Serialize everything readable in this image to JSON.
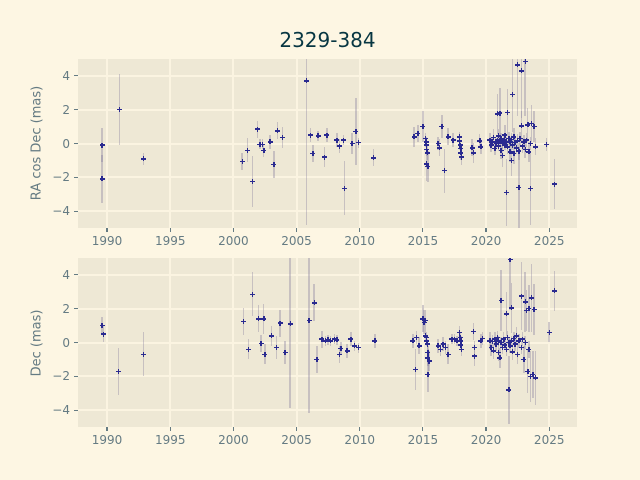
{
  "title": "2329-384",
  "colors": {
    "figure_bg": "#FDF6E3",
    "plot_bg": "#EEE8D5",
    "grid": "#FBF4E1",
    "tick_label": "#657b83",
    "title_color": "#073642",
    "marker": "#2a2a90",
    "error_bar": "rgba(125,118,155,0.35)"
  },
  "chart_data": [
    {
      "type": "scatter",
      "title": "2329-384",
      "ylabel": "RA cos Dec (mas)",
      "xlabel": "",
      "grid": true,
      "legend": false,
      "xlim": [
        1987.7,
        2027.2
      ],
      "ylim": [
        -5,
        5
      ],
      "xticks": [
        1990,
        1995,
        2000,
        2005,
        2010,
        2015,
        2020,
        2025
      ],
      "xtick_labels": [
        "1990",
        "1995",
        "2000",
        "2005",
        "2010",
        "2015",
        "2020",
        "2025"
      ],
      "yticks": [
        -4,
        -2,
        0,
        2,
        4
      ],
      "ytick_labels": [
        "−4",
        "−2",
        "0",
        "2",
        "4"
      ],
      "points_format": [
        "year",
        "value_mas",
        "error_mas"
      ],
      "points": [
        [
          1989.6,
          -0.1,
          1.0
        ],
        [
          1989.6,
          -2.1,
          1.4
        ],
        [
          1991.0,
          2.0,
          2.1
        ],
        [
          1992.9,
          -0.9,
          0.35
        ],
        [
          2000.7,
          -1.05,
          0.5
        ],
        [
          2001.1,
          -0.4,
          0.7
        ],
        [
          2001.5,
          -2.25,
          1.5
        ],
        [
          2001.9,
          0.85,
          0.5
        ],
        [
          2002.1,
          -0.05,
          0.3
        ],
        [
          2002.3,
          -0.05,
          0.3
        ],
        [
          2002.4,
          -0.4,
          0.4
        ],
        [
          2002.9,
          0.1,
          0.4
        ],
        [
          2003.2,
          -1.25,
          0.8
        ],
        [
          2003.5,
          0.75,
          0.5
        ],
        [
          2003.9,
          0.35,
          0.6
        ],
        [
          2005.8,
          3.7,
          8.5
        ],
        [
          2006.1,
          0.5,
          0.4
        ],
        [
          2006.3,
          -0.6,
          0.5
        ],
        [
          2006.7,
          0.45,
          0.3
        ],
        [
          2007.2,
          -0.8,
          0.6
        ],
        [
          2007.4,
          0.5,
          0.4
        ],
        [
          2008.2,
          0.2,
          0.4
        ],
        [
          2008.4,
          -0.15,
          0.4
        ],
        [
          2008.7,
          0.2,
          0.3
        ],
        [
          2008.8,
          -2.65,
          1.6
        ],
        [
          2009.4,
          0.0,
          0.6
        ],
        [
          2009.7,
          0.7,
          2.0
        ],
        [
          2009.9,
          0.05,
          0.3
        ],
        [
          2011.1,
          -0.85,
          0.5
        ],
        [
          2014.3,
          0.4,
          0.6
        ],
        [
          2014.6,
          0.6,
          0.5
        ],
        [
          2015.0,
          1.0,
          0.9
        ],
        [
          2015.2,
          0.3,
          0.3
        ],
        [
          2015.25,
          0.1,
          0.3
        ],
        [
          2015.3,
          -0.1,
          0.3
        ],
        [
          2015.3,
          -0.35,
          0.4
        ],
        [
          2015.35,
          -0.55,
          0.45
        ],
        [
          2015.3,
          -1.2,
          1.0
        ],
        [
          2015.4,
          -1.35,
          0.9
        ],
        [
          2016.2,
          0.0,
          0.4
        ],
        [
          2016.3,
          -0.25,
          0.5
        ],
        [
          2016.5,
          1.0,
          0.7
        ],
        [
          2016.7,
          -1.6,
          1.3
        ],
        [
          2017.0,
          0.4,
          0.5
        ],
        [
          2017.4,
          0.2,
          0.4
        ],
        [
          2017.9,
          0.4,
          0.3
        ],
        [
          2017.9,
          0.15,
          0.3
        ],
        [
          2017.95,
          -0.1,
          0.3
        ],
        [
          2018.0,
          -0.3,
          0.3
        ],
        [
          2018.0,
          -0.55,
          0.4
        ],
        [
          2018.05,
          -0.8,
          0.5
        ],
        [
          2018.9,
          -0.25,
          0.5
        ],
        [
          2019.0,
          -0.55,
          0.6
        ],
        [
          2019.5,
          0.15,
          0.4
        ],
        [
          2019.6,
          -0.2,
          0.4
        ],
        [
          2020.3,
          0.2,
          0.4
        ],
        [
          2020.4,
          -0.1,
          0.4
        ],
        [
          2020.5,
          0.1,
          0.3
        ],
        [
          2020.6,
          0.35,
          0.5
        ],
        [
          2020.7,
          -0.3,
          0.4
        ],
        [
          2020.8,
          0.0,
          0.3
        ],
        [
          2020.9,
          1.75,
          1.2
        ],
        [
          2020.9,
          0.2,
          0.3
        ],
        [
          2021.0,
          -0.15,
          0.3
        ],
        [
          2021.0,
          0.45,
          0.4
        ],
        [
          2021.1,
          1.8,
          1.5
        ],
        [
          2021.1,
          0.1,
          0.3
        ],
        [
          2021.2,
          -0.4,
          0.5
        ],
        [
          2021.2,
          0.3,
          0.3
        ],
        [
          2021.3,
          0.0,
          0.3
        ],
        [
          2021.3,
          -0.7,
          0.7
        ],
        [
          2021.4,
          0.2,
          0.3
        ],
        [
          2021.5,
          -0.1,
          0.3
        ],
        [
          2021.5,
          0.5,
          0.6
        ],
        [
          2021.6,
          -2.9,
          2.0
        ],
        [
          2021.6,
          0.1,
          0.3
        ],
        [
          2021.7,
          1.85,
          1.4
        ],
        [
          2021.7,
          -0.2,
          0.4
        ],
        [
          2021.8,
          0.3,
          0.4
        ],
        [
          2021.9,
          -0.5,
          0.6
        ],
        [
          2021.9,
          0.1,
          0.3
        ],
        [
          2022.0,
          -1.0,
          0.9
        ],
        [
          2022.0,
          0.25,
          0.4
        ],
        [
          2022.1,
          2.9,
          2.2
        ],
        [
          2022.1,
          -0.1,
          0.3
        ],
        [
          2022.2,
          0.4,
          0.5
        ],
        [
          2022.2,
          -0.6,
          0.6
        ],
        [
          2022.3,
          0.05,
          0.3
        ],
        [
          2022.4,
          -0.25,
          0.4
        ],
        [
          2022.5,
          4.65,
          3.0
        ],
        [
          2022.5,
          0.15,
          0.4
        ],
        [
          2022.6,
          -2.6,
          2.4
        ],
        [
          2022.6,
          -0.45,
          0.5
        ],
        [
          2022.7,
          0.3,
          0.4
        ],
        [
          2022.8,
          4.3,
          2.8
        ],
        [
          2022.8,
          1.05,
          0.9
        ],
        [
          2022.9,
          -0.15,
          0.4
        ],
        [
          2023.0,
          0.1,
          0.4
        ],
        [
          2023.1,
          4.85,
          3.2
        ],
        [
          2023.1,
          -0.35,
          0.5
        ],
        [
          2023.2,
          0.2,
          0.4
        ],
        [
          2023.3,
          1.1,
          1.0
        ],
        [
          2023.4,
          -0.5,
          0.6
        ],
        [
          2023.5,
          -2.65,
          2.2
        ],
        [
          2023.5,
          0.0,
          0.4
        ],
        [
          2023.6,
          1.2,
          1.1
        ],
        [
          2023.8,
          1.0,
          0.9
        ],
        [
          2023.9,
          -0.2,
          0.5
        ],
        [
          2024.8,
          -0.05,
          0.4
        ],
        [
          2025.4,
          -2.4,
          1.5
        ]
      ]
    },
    {
      "type": "scatter",
      "title": "",
      "ylabel": "Dec (mas)",
      "xlabel": "",
      "grid": true,
      "legend": false,
      "xlim": [
        1987.7,
        2027.2
      ],
      "ylim": [
        -5,
        5
      ],
      "xticks": [
        1990,
        1995,
        2000,
        2005,
        2010,
        2015,
        2020,
        2025
      ],
      "xtick_labels": [
        "1990",
        "1995",
        "2000",
        "2005",
        "2010",
        "2015",
        "2020",
        "2025"
      ],
      "yticks": [
        -4,
        -2,
        0,
        2,
        4
      ],
      "ytick_labels": [
        "−4",
        "−2",
        "0",
        "2",
        "4"
      ],
      "points_format": [
        "year",
        "value_mas",
        "error_mas"
      ],
      "points": [
        [
          1989.6,
          1.0,
          0.5
        ],
        [
          1989.7,
          0.5,
          0.5
        ],
        [
          1990.9,
          -1.7,
          1.4
        ],
        [
          1992.9,
          -0.7,
          1.3
        ],
        [
          2000.8,
          1.25,
          0.8
        ],
        [
          2001.2,
          -0.4,
          0.6
        ],
        [
          2001.5,
          2.85,
          1.3
        ],
        [
          2002.0,
          1.4,
          0.8
        ],
        [
          2002.2,
          -0.05,
          0.5
        ],
        [
          2002.4,
          1.4,
          0.9
        ],
        [
          2002.5,
          -0.7,
          0.6
        ],
        [
          2003.0,
          0.4,
          0.6
        ],
        [
          2003.4,
          -0.3,
          0.7
        ],
        [
          2003.7,
          1.15,
          0.8
        ],
        [
          2004.1,
          -0.6,
          0.7
        ],
        [
          2004.5,
          1.1,
          5.0
        ],
        [
          2006.0,
          1.3,
          5.5
        ],
        [
          2006.4,
          2.35,
          1.1
        ],
        [
          2006.6,
          -1.0,
          0.8
        ],
        [
          2007.0,
          0.2,
          0.5
        ],
        [
          2007.3,
          0.1,
          0.3
        ],
        [
          2007.5,
          0.15,
          0.3
        ],
        [
          2007.7,
          0.1,
          0.3
        ],
        [
          2008.0,
          0.2,
          0.3
        ],
        [
          2008.2,
          0.15,
          0.3
        ],
        [
          2008.4,
          -0.7,
          0.5
        ],
        [
          2008.5,
          -0.35,
          0.4
        ],
        [
          2009.0,
          -0.5,
          0.4
        ],
        [
          2009.3,
          0.2,
          0.4
        ],
        [
          2009.6,
          -0.2,
          0.3
        ],
        [
          2009.9,
          -0.3,
          0.3
        ],
        [
          2011.2,
          0.1,
          0.4
        ],
        [
          2014.2,
          0.1,
          0.4
        ],
        [
          2014.4,
          -1.6,
          1.2
        ],
        [
          2014.5,
          0.3,
          0.4
        ],
        [
          2014.7,
          -0.2,
          0.5
        ],
        [
          2015.0,
          1.4,
          0.8
        ],
        [
          2015.1,
          1.2,
          0.7
        ],
        [
          2015.2,
          1.3,
          0.6
        ],
        [
          2015.2,
          0.4,
          0.3
        ],
        [
          2015.3,
          0.3,
          0.3
        ],
        [
          2015.3,
          0.1,
          0.3
        ],
        [
          2015.35,
          -0.1,
          0.3
        ],
        [
          2015.4,
          -0.6,
          0.4
        ],
        [
          2015.4,
          -0.9,
          0.5
        ],
        [
          2015.5,
          -1.1,
          0.6
        ],
        [
          2015.4,
          -1.9,
          1.0
        ],
        [
          2016.2,
          -0.2,
          0.4
        ],
        [
          2016.4,
          -0.4,
          0.4
        ],
        [
          2016.6,
          -0.1,
          0.4
        ],
        [
          2016.8,
          -0.3,
          0.4
        ],
        [
          2017.0,
          -0.7,
          0.6
        ],
        [
          2017.3,
          0.2,
          0.3
        ],
        [
          2017.5,
          0.2,
          0.3
        ],
        [
          2017.7,
          0.1,
          0.3
        ],
        [
          2017.9,
          0.6,
          0.4
        ],
        [
          2017.95,
          0.3,
          0.3
        ],
        [
          2018.0,
          0.1,
          0.3
        ],
        [
          2018.0,
          -0.15,
          0.3
        ],
        [
          2018.05,
          -0.4,
          0.4
        ],
        [
          2019.0,
          0.65,
          0.5
        ],
        [
          2019.1,
          -0.3,
          0.4
        ],
        [
          2019.1,
          -0.8,
          0.6
        ],
        [
          2019.6,
          0.1,
          0.4
        ],
        [
          2019.7,
          0.25,
          0.4
        ],
        [
          2020.3,
          0.1,
          0.5
        ],
        [
          2020.4,
          -0.3,
          0.5
        ],
        [
          2020.5,
          0.05,
          0.4
        ],
        [
          2020.6,
          -0.5,
          0.5
        ],
        [
          2020.7,
          0.2,
          0.4
        ],
        [
          2020.8,
          -0.1,
          0.4
        ],
        [
          2020.9,
          0.3,
          0.4
        ],
        [
          2021.0,
          -0.6,
          0.5
        ],
        [
          2021.0,
          0.1,
          0.3
        ],
        [
          2021.1,
          -0.9,
          0.6
        ],
        [
          2021.2,
          2.5,
          1.8
        ],
        [
          2021.2,
          0.0,
          0.3
        ],
        [
          2021.3,
          -0.3,
          0.4
        ],
        [
          2021.4,
          0.2,
          0.4
        ],
        [
          2021.5,
          -0.15,
          0.3
        ],
        [
          2021.6,
          1.7,
          1.3
        ],
        [
          2021.6,
          -0.4,
          0.4
        ],
        [
          2021.7,
          0.3,
          0.4
        ],
        [
          2021.8,
          -2.8,
          2.0
        ],
        [
          2021.8,
          0.0,
          0.3
        ],
        [
          2021.9,
          4.9,
          3.0
        ],
        [
          2021.9,
          -0.2,
          0.4
        ],
        [
          2022.0,
          2.05,
          1.5
        ],
        [
          2022.0,
          0.1,
          0.3
        ],
        [
          2022.1,
          -0.55,
          0.5
        ],
        [
          2022.2,
          0.25,
          0.4
        ],
        [
          2022.3,
          -0.1,
          0.4
        ],
        [
          2022.4,
          0.4,
          0.5
        ],
        [
          2022.5,
          -0.7,
          0.6
        ],
        [
          2022.6,
          0.1,
          0.4
        ],
        [
          2022.8,
          2.75,
          2.0
        ],
        [
          2022.8,
          -0.3,
          0.4
        ],
        [
          2022.9,
          0.2,
          0.4
        ],
        [
          2023.0,
          -1.0,
          0.8
        ],
        [
          2023.1,
          2.4,
          1.8
        ],
        [
          2023.1,
          0.0,
          0.4
        ],
        [
          2023.2,
          1.9,
          1.2
        ],
        [
          2023.3,
          -1.7,
          1.3
        ],
        [
          2023.4,
          2.0,
          1.4
        ],
        [
          2023.4,
          -0.4,
          0.5
        ],
        [
          2023.5,
          -2.0,
          1.5
        ],
        [
          2023.6,
          2.65,
          2.0
        ],
        [
          2023.7,
          -1.9,
          1.4
        ],
        [
          2023.8,
          1.95,
          1.5
        ],
        [
          2023.9,
          -2.1,
          1.6
        ],
        [
          2025.0,
          0.6,
          0.6
        ],
        [
          2025.4,
          3.05,
          1.2
        ]
      ]
    }
  ]
}
